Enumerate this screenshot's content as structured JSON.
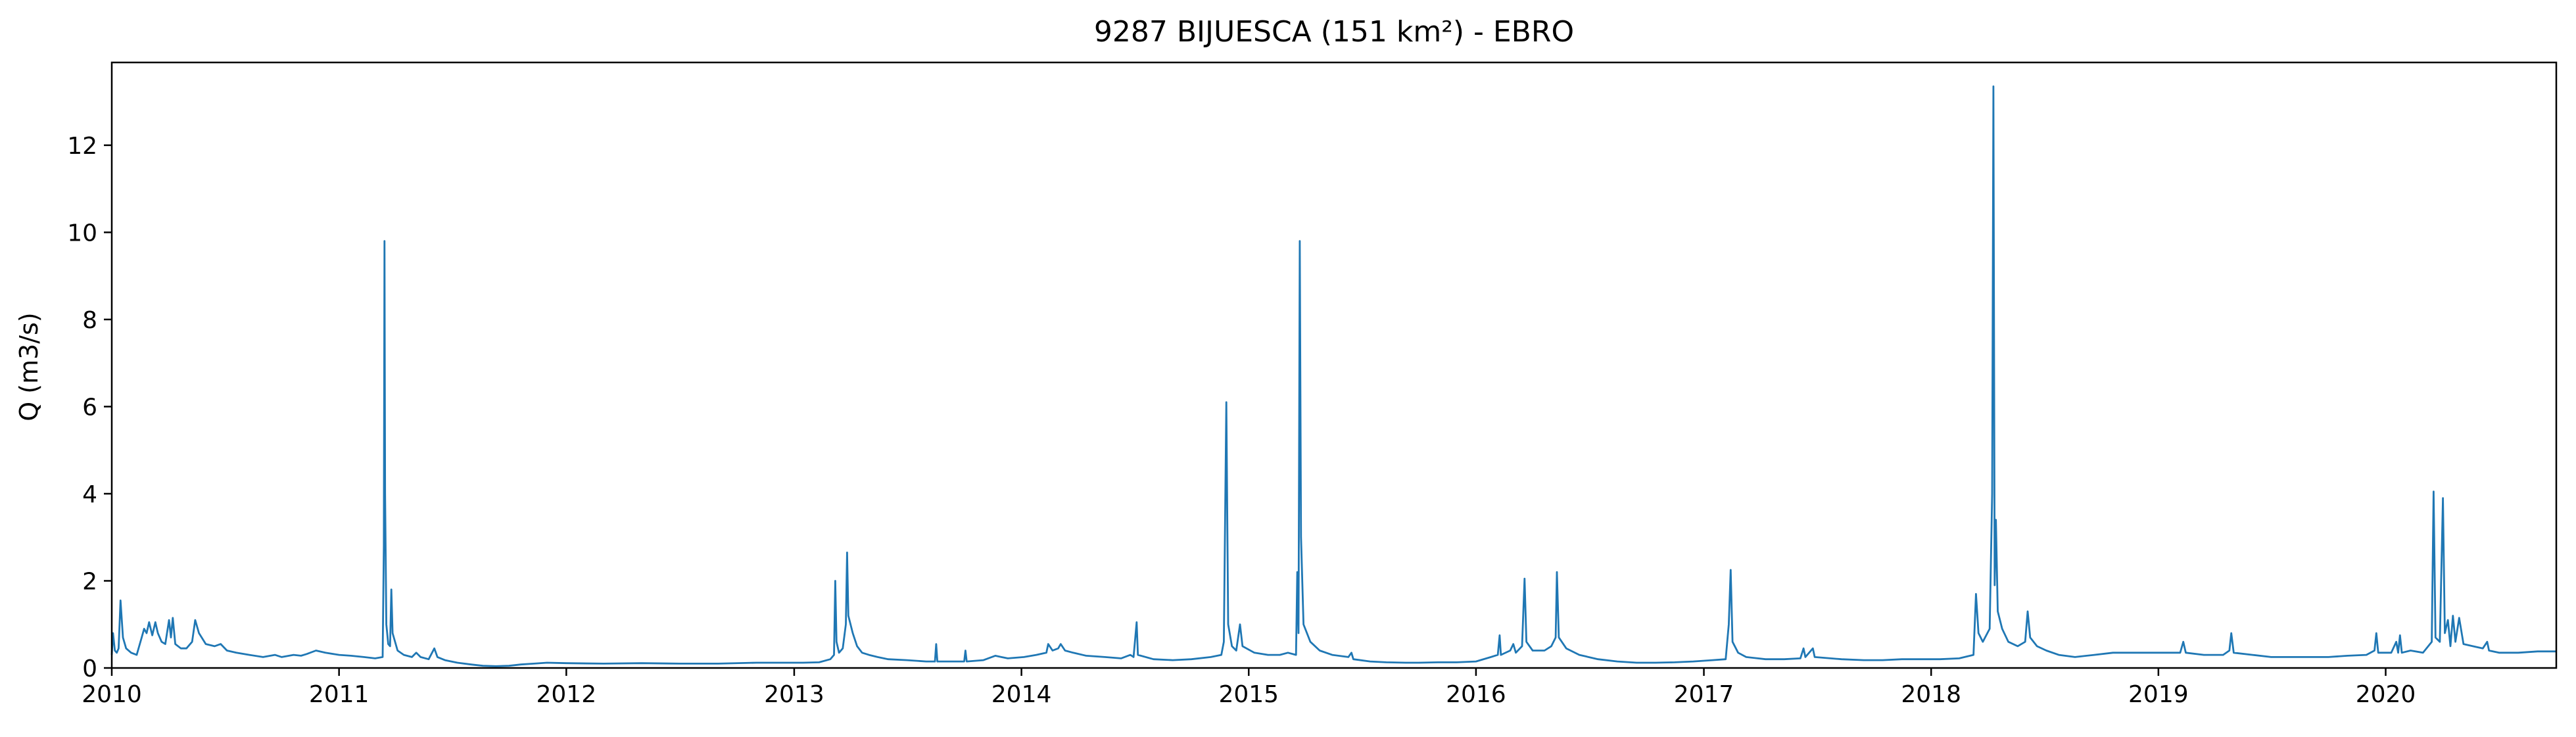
{
  "chart_data": {
    "type": "line",
    "title": "9287 BIJUESCA (151 km²) - EBRO",
    "xlabel": "",
    "ylabel": "Q (m3/s)",
    "x_ticks": [
      "2010",
      "2011",
      "2012",
      "2013",
      "2014",
      "2015",
      "2016",
      "2017",
      "2018",
      "2019",
      "2020"
    ],
    "y_ticks": [
      "0",
      "2",
      "4",
      "6",
      "8",
      "10",
      "12"
    ],
    "xlim": [
      "2010-01-01",
      "2020-10-01"
    ],
    "ylim": [
      0,
      13.9
    ],
    "grid": false,
    "legend": "none",
    "series": [
      {
        "color": "#1f77b4",
        "points": [
          [
            "2010-01-01",
            0.3
          ],
          [
            "2010-01-03",
            0.8
          ],
          [
            "2010-01-06",
            0.4
          ],
          [
            "2010-01-09",
            0.35
          ],
          [
            "2010-01-12",
            0.45
          ],
          [
            "2010-01-15",
            1.55
          ],
          [
            "2010-01-19",
            0.7
          ],
          [
            "2010-01-24",
            0.45
          ],
          [
            "2010-02-01",
            0.35
          ],
          [
            "2010-02-10",
            0.3
          ],
          [
            "2010-02-18",
            0.7
          ],
          [
            "2010-02-22",
            0.9
          ],
          [
            "2010-02-26",
            0.8
          ],
          [
            "2010-03-02",
            1.05
          ],
          [
            "2010-03-07",
            0.75
          ],
          [
            "2010-03-12",
            1.05
          ],
          [
            "2010-03-16",
            0.8
          ],
          [
            "2010-03-22",
            0.6
          ],
          [
            "2010-03-28",
            0.55
          ],
          [
            "2010-04-03",
            1.1
          ],
          [
            "2010-04-06",
            0.7
          ],
          [
            "2010-04-09",
            1.15
          ],
          [
            "2010-04-13",
            0.55
          ],
          [
            "2010-04-22",
            0.45
          ],
          [
            "2010-05-01",
            0.45
          ],
          [
            "2010-05-10",
            0.6
          ],
          [
            "2010-05-15",
            1.1
          ],
          [
            "2010-05-21",
            0.8
          ],
          [
            "2010-06-01",
            0.55
          ],
          [
            "2010-06-15",
            0.5
          ],
          [
            "2010-06-25",
            0.55
          ],
          [
            "2010-07-05",
            0.4
          ],
          [
            "2010-07-20",
            0.35
          ],
          [
            "2010-08-10",
            0.3
          ],
          [
            "2010-09-01",
            0.25
          ],
          [
            "2010-09-20",
            0.3
          ],
          [
            "2010-10-01",
            0.25
          ],
          [
            "2010-10-20",
            0.3
          ],
          [
            "2010-11-01",
            0.28
          ],
          [
            "2010-11-10",
            0.32
          ],
          [
            "2010-11-25",
            0.4
          ],
          [
            "2010-12-10",
            0.35
          ],
          [
            "2011-01-01",
            0.3
          ],
          [
            "2011-01-20",
            0.28
          ],
          [
            "2011-02-10",
            0.25
          ],
          [
            "2011-02-28",
            0.22
          ],
          [
            "2011-03-12",
            0.25
          ],
          [
            "2011-03-14",
            2.8
          ],
          [
            "2011-03-15",
            9.8
          ],
          [
            "2011-03-16",
            4.0
          ],
          [
            "2011-03-18",
            1.0
          ],
          [
            "2011-03-21",
            0.55
          ],
          [
            "2011-03-24",
            0.5
          ],
          [
            "2011-03-26",
            1.8
          ],
          [
            "2011-03-28",
            0.8
          ],
          [
            "2011-04-05",
            0.4
          ],
          [
            "2011-04-15",
            0.3
          ],
          [
            "2011-04-28",
            0.25
          ],
          [
            "2011-05-05",
            0.35
          ],
          [
            "2011-05-12",
            0.25
          ],
          [
            "2011-05-25",
            0.2
          ],
          [
            "2011-06-03",
            0.45
          ],
          [
            "2011-06-08",
            0.25
          ],
          [
            "2011-06-20",
            0.18
          ],
          [
            "2011-07-10",
            0.12
          ],
          [
            "2011-08-01",
            0.08
          ],
          [
            "2011-08-20",
            0.05
          ],
          [
            "2011-09-10",
            0.04
          ],
          [
            "2011-10-01",
            0.05
          ],
          [
            "2011-10-20",
            0.08
          ],
          [
            "2011-11-10",
            0.1
          ],
          [
            "2011-12-01",
            0.12
          ],
          [
            "2012-01-01",
            0.11
          ],
          [
            "2012-03-01",
            0.1
          ],
          [
            "2012-05-01",
            0.11
          ],
          [
            "2012-07-01",
            0.1
          ],
          [
            "2012-09-01",
            0.1
          ],
          [
            "2012-11-01",
            0.12
          ],
          [
            "2012-12-15",
            0.12
          ],
          [
            "2013-01-15",
            0.12
          ],
          [
            "2013-02-10",
            0.13
          ],
          [
            "2013-02-28",
            0.2
          ],
          [
            "2013-03-06",
            0.3
          ],
          [
            "2013-03-08",
            2.0
          ],
          [
            "2013-03-10",
            0.6
          ],
          [
            "2013-03-14",
            0.35
          ],
          [
            "2013-03-20",
            0.45
          ],
          [
            "2013-03-25",
            1.0
          ],
          [
            "2013-03-27",
            2.65
          ],
          [
            "2013-03-29",
            1.2
          ],
          [
            "2013-04-05",
            0.8
          ],
          [
            "2013-04-12",
            0.5
          ],
          [
            "2013-04-20",
            0.35
          ],
          [
            "2013-05-01",
            0.3
          ],
          [
            "2013-05-15",
            0.25
          ],
          [
            "2013-06-01",
            0.2
          ],
          [
            "2013-07-01",
            0.18
          ],
          [
            "2013-08-01",
            0.15
          ],
          [
            "2013-08-15",
            0.15
          ],
          [
            "2013-08-17",
            0.55
          ],
          [
            "2013-08-19",
            0.15
          ],
          [
            "2013-09-15",
            0.15
          ],
          [
            "2013-10-01",
            0.15
          ],
          [
            "2013-10-03",
            0.4
          ],
          [
            "2013-10-05",
            0.15
          ],
          [
            "2013-11-01",
            0.18
          ],
          [
            "2013-11-20",
            0.28
          ],
          [
            "2013-12-10",
            0.22
          ],
          [
            "2014-01-05",
            0.25
          ],
          [
            "2014-01-25",
            0.3
          ],
          [
            "2014-02-10",
            0.35
          ],
          [
            "2014-02-13",
            0.55
          ],
          [
            "2014-02-20",
            0.4
          ],
          [
            "2014-03-01",
            0.45
          ],
          [
            "2014-03-05",
            0.55
          ],
          [
            "2014-03-12",
            0.4
          ],
          [
            "2014-03-25",
            0.35
          ],
          [
            "2014-04-15",
            0.28
          ],
          [
            "2014-05-15",
            0.25
          ],
          [
            "2014-06-10",
            0.22
          ],
          [
            "2014-06-25",
            0.3
          ],
          [
            "2014-06-30",
            0.25
          ],
          [
            "2014-07-05",
            1.05
          ],
          [
            "2014-07-07",
            0.3
          ],
          [
            "2014-08-01",
            0.2
          ],
          [
            "2014-09-01",
            0.18
          ],
          [
            "2014-10-01",
            0.2
          ],
          [
            "2014-11-01",
            0.25
          ],
          [
            "2014-11-18",
            0.3
          ],
          [
            "2014-11-22",
            0.6
          ],
          [
            "2014-11-26",
            6.1
          ],
          [
            "2014-11-29",
            1.0
          ],
          [
            "2014-12-05",
            0.5
          ],
          [
            "2014-12-12",
            0.4
          ],
          [
            "2014-12-18",
            1.0
          ],
          [
            "2014-12-22",
            0.5
          ],
          [
            "2015-01-10",
            0.35
          ],
          [
            "2015-02-01",
            0.3
          ],
          [
            "2015-02-20",
            0.3
          ],
          [
            "2015-03-05",
            0.35
          ],
          [
            "2015-03-18",
            0.3
          ],
          [
            "2015-03-20",
            2.2
          ],
          [
            "2015-03-22",
            0.8
          ],
          [
            "2015-03-24",
            9.8
          ],
          [
            "2015-03-26",
            3.0
          ],
          [
            "2015-03-30",
            1.0
          ],
          [
            "2015-04-10",
            0.6
          ],
          [
            "2015-04-25",
            0.4
          ],
          [
            "2015-05-15",
            0.3
          ],
          [
            "2015-06-10",
            0.25
          ],
          [
            "2015-06-15",
            0.35
          ],
          [
            "2015-06-18",
            0.2
          ],
          [
            "2015-07-15",
            0.15
          ],
          [
            "2015-08-10",
            0.13
          ],
          [
            "2015-09-10",
            0.12
          ],
          [
            "2015-10-01",
            0.12
          ],
          [
            "2015-11-01",
            0.13
          ],
          [
            "2015-12-01",
            0.13
          ],
          [
            "2016-01-01",
            0.15
          ],
          [
            "2016-01-25",
            0.25
          ],
          [
            "2016-02-05",
            0.3
          ],
          [
            "2016-02-08",
            0.75
          ],
          [
            "2016-02-10",
            0.3
          ],
          [
            "2016-02-25",
            0.4
          ],
          [
            "2016-03-01",
            0.55
          ],
          [
            "2016-03-05",
            0.35
          ],
          [
            "2016-03-15",
            0.5
          ],
          [
            "2016-03-19",
            2.05
          ],
          [
            "2016-03-22",
            0.6
          ],
          [
            "2016-04-01",
            0.4
          ],
          [
            "2016-04-20",
            0.4
          ],
          [
            "2016-05-01",
            0.5
          ],
          [
            "2016-05-08",
            0.7
          ],
          [
            "2016-05-10",
            2.2
          ],
          [
            "2016-05-13",
            0.7
          ],
          [
            "2016-05-25",
            0.45
          ],
          [
            "2016-06-15",
            0.3
          ],
          [
            "2016-07-15",
            0.2
          ],
          [
            "2016-08-15",
            0.15
          ],
          [
            "2016-09-15",
            0.12
          ],
          [
            "2016-10-15",
            0.12
          ],
          [
            "2016-11-15",
            0.13
          ],
          [
            "2016-12-15",
            0.15
          ],
          [
            "2017-01-15",
            0.18
          ],
          [
            "2017-02-05",
            0.2
          ],
          [
            "2017-02-10",
            1.0
          ],
          [
            "2017-02-13",
            2.25
          ],
          [
            "2017-02-16",
            0.6
          ],
          [
            "2017-02-25",
            0.35
          ],
          [
            "2017-03-10",
            0.25
          ],
          [
            "2017-04-10",
            0.2
          ],
          [
            "2017-05-10",
            0.2
          ],
          [
            "2017-06-05",
            0.22
          ],
          [
            "2017-06-10",
            0.45
          ],
          [
            "2017-06-13",
            0.25
          ],
          [
            "2017-06-25",
            0.45
          ],
          [
            "2017-06-28",
            0.25
          ],
          [
            "2017-08-10",
            0.2
          ],
          [
            "2017-09-15",
            0.18
          ],
          [
            "2017-10-15",
            0.18
          ],
          [
            "2017-11-15",
            0.2
          ],
          [
            "2017-12-15",
            0.2
          ],
          [
            "2018-01-15",
            0.2
          ],
          [
            "2018-02-15",
            0.22
          ],
          [
            "2018-03-10",
            0.3
          ],
          [
            "2018-03-14",
            1.7
          ],
          [
            "2018-03-18",
            0.8
          ],
          [
            "2018-03-25",
            0.6
          ],
          [
            "2018-04-05",
            0.9
          ],
          [
            "2018-04-09",
            4.0
          ],
          [
            "2018-04-11",
            13.35
          ],
          [
            "2018-04-13",
            1.9
          ],
          [
            "2018-04-15",
            3.4
          ],
          [
            "2018-04-18",
            1.3
          ],
          [
            "2018-04-25",
            0.9
          ],
          [
            "2018-05-05",
            0.6
          ],
          [
            "2018-05-20",
            0.5
          ],
          [
            "2018-06-01",
            0.6
          ],
          [
            "2018-06-05",
            1.3
          ],
          [
            "2018-06-09",
            0.7
          ],
          [
            "2018-06-20",
            0.5
          ],
          [
            "2018-07-05",
            0.4
          ],
          [
            "2018-07-25",
            0.3
          ],
          [
            "2018-08-20",
            0.25
          ],
          [
            "2018-09-20",
            0.3
          ],
          [
            "2018-10-20",
            0.35
          ],
          [
            "2018-11-20",
            0.35
          ],
          [
            "2018-12-20",
            0.35
          ],
          [
            "2019-01-20",
            0.35
          ],
          [
            "2019-02-05",
            0.35
          ],
          [
            "2019-02-10",
            0.6
          ],
          [
            "2019-02-14",
            0.35
          ],
          [
            "2019-03-15",
            0.3
          ],
          [
            "2019-04-15",
            0.3
          ],
          [
            "2019-04-25",
            0.4
          ],
          [
            "2019-04-28",
            0.8
          ],
          [
            "2019-05-02",
            0.35
          ],
          [
            "2019-06-01",
            0.3
          ],
          [
            "2019-07-01",
            0.25
          ],
          [
            "2019-08-01",
            0.25
          ],
          [
            "2019-09-01",
            0.25
          ],
          [
            "2019-10-01",
            0.25
          ],
          [
            "2019-11-01",
            0.28
          ],
          [
            "2019-12-01",
            0.3
          ],
          [
            "2019-12-14",
            0.4
          ],
          [
            "2019-12-17",
            0.8
          ],
          [
            "2019-12-20",
            0.35
          ],
          [
            "2020-01-10",
            0.35
          ],
          [
            "2020-01-18",
            0.6
          ],
          [
            "2020-01-21",
            0.35
          ],
          [
            "2020-01-24",
            0.75
          ],
          [
            "2020-01-27",
            0.35
          ],
          [
            "2020-02-10",
            0.4
          ],
          [
            "2020-03-01",
            0.35
          ],
          [
            "2020-03-15",
            0.6
          ],
          [
            "2020-03-18",
            4.05
          ],
          [
            "2020-03-21",
            0.7
          ],
          [
            "2020-03-28",
            0.6
          ],
          [
            "2020-04-02",
            3.9
          ],
          [
            "2020-04-05",
            0.8
          ],
          [
            "2020-04-10",
            1.1
          ],
          [
            "2020-04-14",
            0.5
          ],
          [
            "2020-04-18",
            1.2
          ],
          [
            "2020-04-22",
            0.6
          ],
          [
            "2020-04-28",
            1.15
          ],
          [
            "2020-05-05",
            0.55
          ],
          [
            "2020-05-20",
            0.5
          ],
          [
            "2020-06-05",
            0.45
          ],
          [
            "2020-06-12",
            0.6
          ],
          [
            "2020-06-15",
            0.4
          ],
          [
            "2020-07-01",
            0.35
          ],
          [
            "2020-08-01",
            0.35
          ],
          [
            "2020-09-01",
            0.38
          ],
          [
            "2020-10-01",
            0.38
          ]
        ]
      }
    ]
  }
}
